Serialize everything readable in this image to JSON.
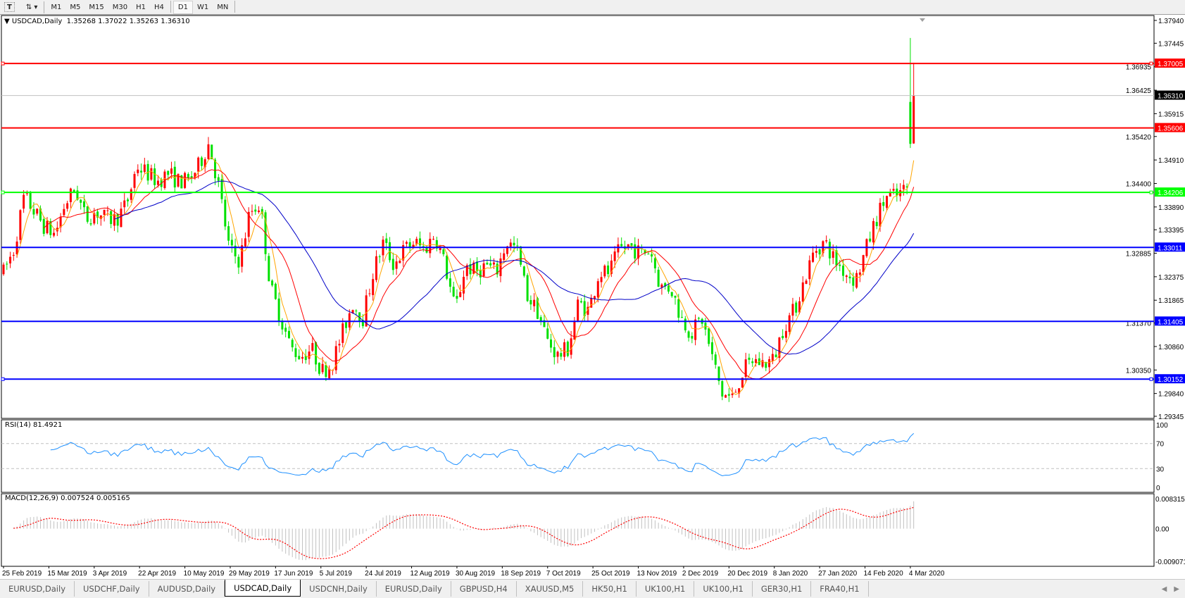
{
  "toolbar": {
    "icons": [
      "text-tool-icon",
      "line-tools-icon"
    ],
    "timeframes": [
      "M1",
      "M5",
      "M15",
      "M30",
      "H1",
      "H4",
      "D1",
      "W1",
      "MN"
    ],
    "active_timeframe": "D1"
  },
  "chart": {
    "title": "USDCAD,Daily",
    "ohlc_text": "1.35268 1.37022 1.35263 1.36310",
    "current_price": "1.36310"
  },
  "colors": {
    "bull": "#ff0000",
    "bear": "#00e000",
    "ma_fast": "#ffa500",
    "ma_mid": "#ff0000",
    "ma_slow": "#0000c8",
    "rsi": "#1e90ff",
    "macd_hist": "#c0c0c0",
    "macd_signal": "#ff0000",
    "res_line": "#ff0000",
    "sup_green": "#00ff00",
    "sup_blue": "#0000ff"
  },
  "chart_data": {
    "type": "candlestick",
    "symbol": "USDCAD",
    "period": "Daily",
    "y_range": [
      1.29345,
      1.3794
    ],
    "price_ticks": [
      "1.37940",
      "1.37445",
      "1.36935",
      "1.36425",
      "1.35915",
      "1.35420",
      "1.34910",
      "1.34400",
      "1.33890",
      "1.33395",
      "1.32885",
      "1.32375",
      "1.31865",
      "1.31370",
      "1.30860",
      "1.30350",
      "1.29840",
      "1.29345"
    ],
    "date_ticks": [
      "25 Feb 2019",
      "15 Mar 2019",
      "3 Apr 2019",
      "22 Apr 2019",
      "10 May 2019",
      "29 May 2019",
      "17 Jun 2019",
      "5 Jul 2019",
      "24 Jul 2019",
      "12 Aug 2019",
      "30 Aug 2019",
      "18 Sep 2019",
      "7 Oct 2019",
      "25 Oct 2019",
      "13 Nov 2019",
      "2 Dec 2019",
      "20 Dec 2019",
      "8 Jan 2020",
      "27 Jan 2020",
      "14 Feb 2020",
      "4 Mar 2020"
    ],
    "close_path": [
      1.3247,
      1.3296,
      1.3412,
      1.3379,
      1.3346,
      1.333,
      1.3396,
      1.3429,
      1.3363,
      1.3379,
      1.3363,
      1.3363,
      1.3396,
      1.3478,
      1.3462,
      1.3445,
      1.3462,
      1.3445,
      1.3445,
      1.3478,
      1.3528,
      1.3429,
      1.3296,
      1.3272,
      1.3379,
      1.3396,
      1.3214,
      1.3148,
      1.3082,
      1.3065,
      1.3082,
      1.3032,
      1.3049,
      1.3115,
      1.3181,
      1.3148,
      1.3247,
      1.3313,
      1.3263,
      1.3296,
      1.3313,
      1.3296,
      1.333,
      1.3263,
      1.3164,
      1.3263,
      1.3247,
      1.3263,
      1.3247,
      1.3313,
      1.3296,
      1.3197,
      1.3164,
      1.3098,
      1.3065,
      1.3082,
      1.3181,
      1.3164,
      1.3247,
      1.3247,
      1.3296,
      1.3305,
      1.3288,
      1.3296,
      1.3214,
      1.3214,
      1.3148,
      1.3115,
      1.3148,
      1.3065,
      1.2982,
      1.2974,
      1.3032,
      1.3057,
      1.3049,
      1.3057,
      1.3131,
      1.3164,
      1.323,
      1.3296,
      1.3313,
      1.3272,
      1.3247,
      1.323,
      1.3296,
      1.3363,
      1.3412,
      1.3412,
      1.343
    ],
    "last_bars": [
      {
        "open": 1.3617,
        "high": 1.3756,
        "low": 1.3517,
        "close": 1.3526
      },
      {
        "open": 1.35268,
        "high": 1.37022,
        "low": 1.35263,
        "close": 1.3631
      }
    ],
    "moving_averages": [
      5,
      13,
      34
    ],
    "horizontal_lines": [
      {
        "price": "1.37005",
        "color": "#ff0000"
      },
      {
        "price": "1.35606",
        "color": "#ff0000"
      },
      {
        "price": "1.34206",
        "color": "#00ff00"
      },
      {
        "price": "1.33011",
        "color": "#0000ff"
      },
      {
        "price": "1.31405",
        "color": "#0000ff"
      },
      {
        "price": "1.30152",
        "color": "#0000ff"
      }
    ],
    "grid": false
  },
  "rsi": {
    "label": "RSI(14) 81.4921",
    "ticks": [
      "100",
      "70",
      "30",
      "0"
    ],
    "levels": [
      70,
      30
    ]
  },
  "macd": {
    "label": "MACD(12,26,9) 0.007524 0.005165",
    "ticks": [
      "0.008315",
      "0.00",
      "-0.009071"
    ]
  },
  "tabs": [
    {
      "label": "EURUSD,Daily"
    },
    {
      "label": "USDCHF,Daily"
    },
    {
      "label": "AUDUSD,Daily"
    },
    {
      "label": "USDCAD,Daily",
      "active": true
    },
    {
      "label": "USDCNH,Daily"
    },
    {
      "label": "EURUSD,Daily"
    },
    {
      "label": "GBPUSD,H4"
    },
    {
      "label": "XAUUSD,M5"
    },
    {
      "label": "HK50,H1"
    },
    {
      "label": "UK100,H1"
    },
    {
      "label": "UK100,H1"
    },
    {
      "label": "GER30,H1"
    },
    {
      "label": "FRA40,H1"
    }
  ]
}
